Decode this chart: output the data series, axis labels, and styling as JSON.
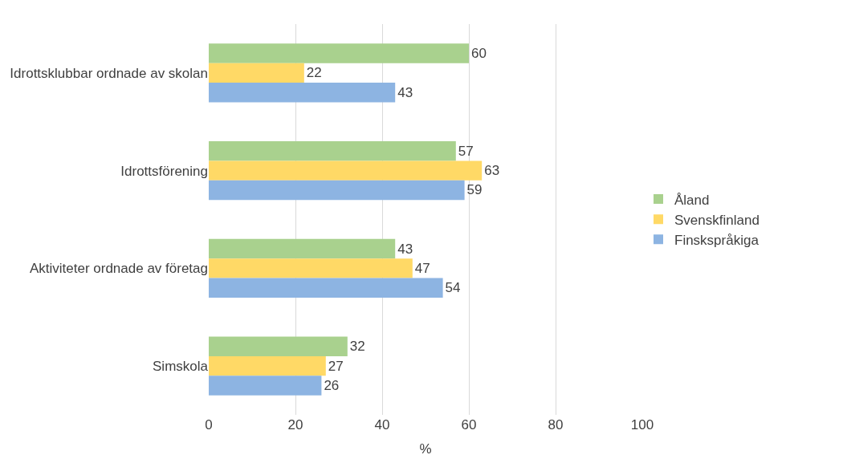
{
  "chart_data": {
    "type": "bar",
    "orientation": "horizontal",
    "xlabel": "%",
    "categories": [
      "Idrottsklubbar ordnade av skolan",
      "Idrottsförening",
      "Aktiviteter ordnade av företag",
      "Simskola"
    ],
    "series": [
      {
        "name": "Åland",
        "color": "#a9d18e",
        "values": [
          60,
          57,
          43,
          32
        ]
      },
      {
        "name": "Svenskfinland",
        "color": "#ffd966",
        "values": [
          22,
          63,
          47,
          27
        ]
      },
      {
        "name": "Finskspråkiga",
        "color": "#8db4e2",
        "values": [
          43,
          59,
          54,
          26
        ]
      }
    ],
    "xlim": [
      0,
      100
    ],
    "xticks": [
      0,
      20,
      40,
      60,
      80,
      100
    ],
    "grid": "x",
    "legend": "right",
    "data_labels": true
  }
}
